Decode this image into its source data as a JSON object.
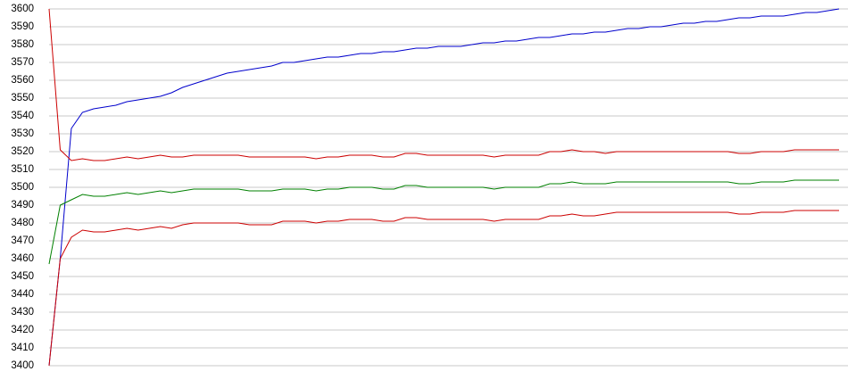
{
  "chart_data": {
    "type": "line",
    "categories": [
      null,
      null,
      null,
      null,
      null,
      null,
      null,
      null,
      null,
      null,
      null,
      null,
      null,
      null,
      null,
      null,
      null,
      null,
      null,
      null,
      null,
      null,
      null,
      null,
      null,
      null,
      null,
      null,
      null,
      null,
      null,
      null,
      null,
      null,
      null,
      null,
      null,
      null,
      null,
      null,
      null,
      null,
      null,
      null,
      null,
      null,
      null,
      null,
      null,
      null,
      null,
      null,
      null,
      null,
      null,
      null,
      null,
      null,
      null,
      null,
      null,
      null,
      null,
      null,
      null,
      null,
      null,
      null,
      null,
      null,
      null,
      null
    ],
    "ylim": [
      3400,
      3600
    ],
    "yticks": [
      3400,
      3410,
      3420,
      3430,
      3440,
      3450,
      3460,
      3470,
      3480,
      3490,
      3500,
      3510,
      3520,
      3530,
      3540,
      3550,
      3560,
      3570,
      3580,
      3590,
      3600
    ],
    "grid": true,
    "series": [
      {
        "color": "#0000cc",
        "values": [
          3400,
          3460,
          3533,
          3542,
          3544,
          3545,
          3546,
          3548,
          3549,
          3550,
          3551,
          3553,
          3556,
          3558,
          3560,
          3562,
          3564,
          3565,
          3566,
          3567,
          3568,
          3570,
          3570,
          3571,
          3572,
          3573,
          3573,
          3574,
          3575,
          3575,
          3576,
          3576,
          3577,
          3578,
          3578,
          3579,
          3579,
          3579,
          3580,
          3581,
          3581,
          3582,
          3582,
          3583,
          3584,
          3584,
          3585,
          3586,
          3586,
          3587,
          3587,
          3588,
          3589,
          3589,
          3590,
          3590,
          3591,
          3592,
          3592,
          3593,
          3593,
          3594,
          3595,
          3595,
          3596,
          3596,
          3596,
          3597,
          3598,
          3598,
          3599,
          3600
        ]
      },
      {
        "color": "#cc0000",
        "values": [
          3600,
          3521,
          3515,
          3516,
          3515,
          3515,
          3516,
          3517,
          3516,
          3517,
          3518,
          3517,
          3517,
          3518,
          3518,
          3518,
          3518,
          3518,
          3517,
          3517,
          3517,
          3517,
          3517,
          3517,
          3516,
          3517,
          3517,
          3518,
          3518,
          3518,
          3517,
          3517,
          3519,
          3519,
          3518,
          3518,
          3518,
          3518,
          3518,
          3518,
          3517,
          3518,
          3518,
          3518,
          3518,
          3520,
          3520,
          3521,
          3520,
          3520,
          3519,
          3520,
          3520,
          3520,
          3520,
          3520,
          3520,
          3520,
          3520,
          3520,
          3520,
          3520,
          3519,
          3519,
          3520,
          3520,
          3520,
          3521,
          3521,
          3521,
          3521,
          3521
        ]
      },
      {
        "color": "#008000",
        "values": [
          3457,
          3490,
          3493,
          3496,
          3495,
          3495,
          3496,
          3497,
          3496,
          3497,
          3498,
          3497,
          3498,
          3499,
          3499,
          3499,
          3499,
          3499,
          3498,
          3498,
          3498,
          3499,
          3499,
          3499,
          3498,
          3499,
          3499,
          3500,
          3500,
          3500,
          3499,
          3499,
          3501,
          3501,
          3500,
          3500,
          3500,
          3500,
          3500,
          3500,
          3499,
          3500,
          3500,
          3500,
          3500,
          3502,
          3502,
          3503,
          3502,
          3502,
          3502,
          3503,
          3503,
          3503,
          3503,
          3503,
          3503,
          3503,
          3503,
          3503,
          3503,
          3503,
          3502,
          3502,
          3503,
          3503,
          3503,
          3504,
          3504,
          3504,
          3504,
          3504
        ]
      },
      {
        "color": "#cc0000",
        "values": [
          3400,
          3460,
          3472,
          3476,
          3475,
          3475,
          3476,
          3477,
          3476,
          3477,
          3478,
          3477,
          3479,
          3480,
          3480,
          3480,
          3480,
          3480,
          3479,
          3479,
          3479,
          3481,
          3481,
          3481,
          3480,
          3481,
          3481,
          3482,
          3482,
          3482,
          3481,
          3481,
          3483,
          3483,
          3482,
          3482,
          3482,
          3482,
          3482,
          3482,
          3481,
          3482,
          3482,
          3482,
          3482,
          3484,
          3484,
          3485,
          3484,
          3484,
          3485,
          3486,
          3486,
          3486,
          3486,
          3486,
          3486,
          3486,
          3486,
          3486,
          3486,
          3486,
          3485,
          3485,
          3486,
          3486,
          3486,
          3487,
          3487,
          3487,
          3487,
          3487
        ]
      }
    ]
  }
}
